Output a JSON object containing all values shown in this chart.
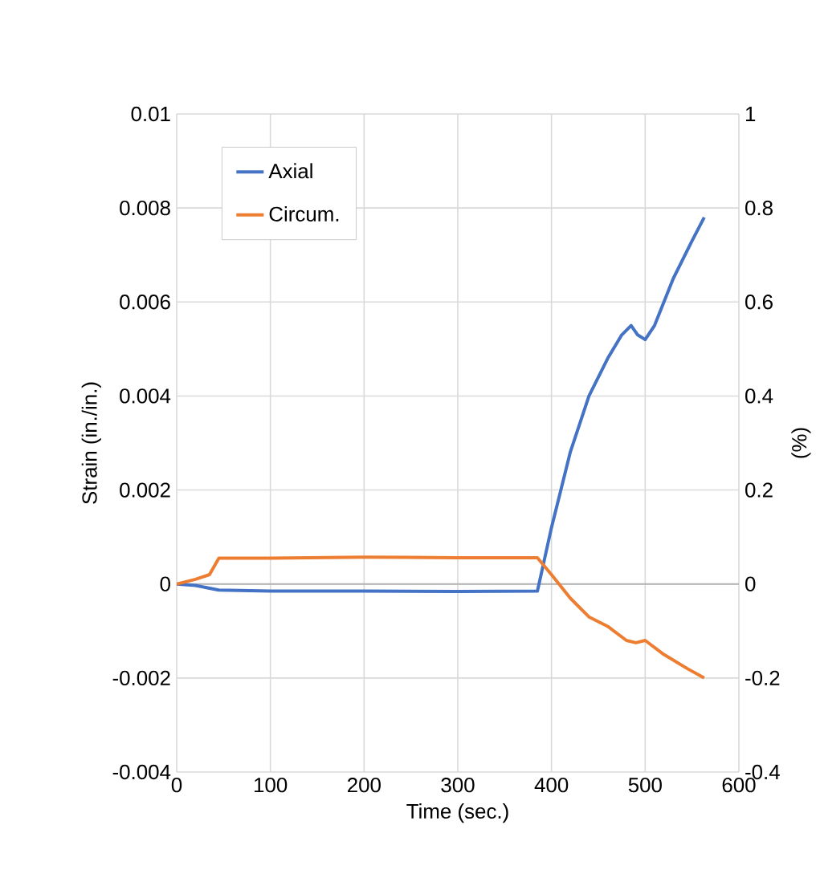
{
  "chart_data": {
    "type": "line",
    "xlabel": "Time (sec.)",
    "ylabel": "Strain (in./in.)",
    "y2label": "(%)",
    "xlim": [
      0,
      600
    ],
    "xticks": [
      0,
      100,
      200,
      300,
      400,
      500,
      600
    ],
    "ylim": [
      -0.004,
      0.01
    ],
    "yticks": [
      -0.004,
      -0.002,
      0,
      0.002,
      0.004,
      0.006,
      0.008,
      0.01
    ],
    "y2lim": [
      -0.4,
      1
    ],
    "y2ticks": [
      -0.4,
      -0.2,
      0,
      0.2,
      0.4,
      0.6,
      0.8,
      1
    ],
    "grid": true,
    "legend": "top left",
    "marker": "none",
    "line_style": "solid",
    "series": [
      {
        "name": "Axial",
        "color": "#4472c4",
        "x": [
          0,
          20,
          45,
          100,
          200,
          300,
          385,
          400,
          420,
          440,
          460,
          475,
          485,
          492,
          500,
          510,
          530,
          550,
          563
        ],
        "values": [
          0,
          -3e-05,
          -0.00013,
          -0.00015,
          -0.00015,
          -0.00016,
          -0.00015,
          0.0012,
          0.0028,
          0.004,
          0.0048,
          0.0053,
          0.0055,
          0.0053,
          0.0052,
          0.0055,
          0.0065,
          0.0073,
          0.0078
        ]
      },
      {
        "name": "Circum.",
        "color": "#ed7d31",
        "x": [
          0,
          20,
          35,
          45,
          100,
          200,
          300,
          385,
          400,
          420,
          440,
          460,
          480,
          490,
          500,
          520,
          545,
          563
        ],
        "values": [
          0,
          0.0001,
          0.0002,
          0.00055,
          0.00055,
          0.00057,
          0.00056,
          0.00056,
          0.0002,
          -0.0003,
          -0.0007,
          -0.0009,
          -0.0012,
          -0.00125,
          -0.0012,
          -0.0015,
          -0.0018,
          -0.002
        ]
      }
    ]
  }
}
